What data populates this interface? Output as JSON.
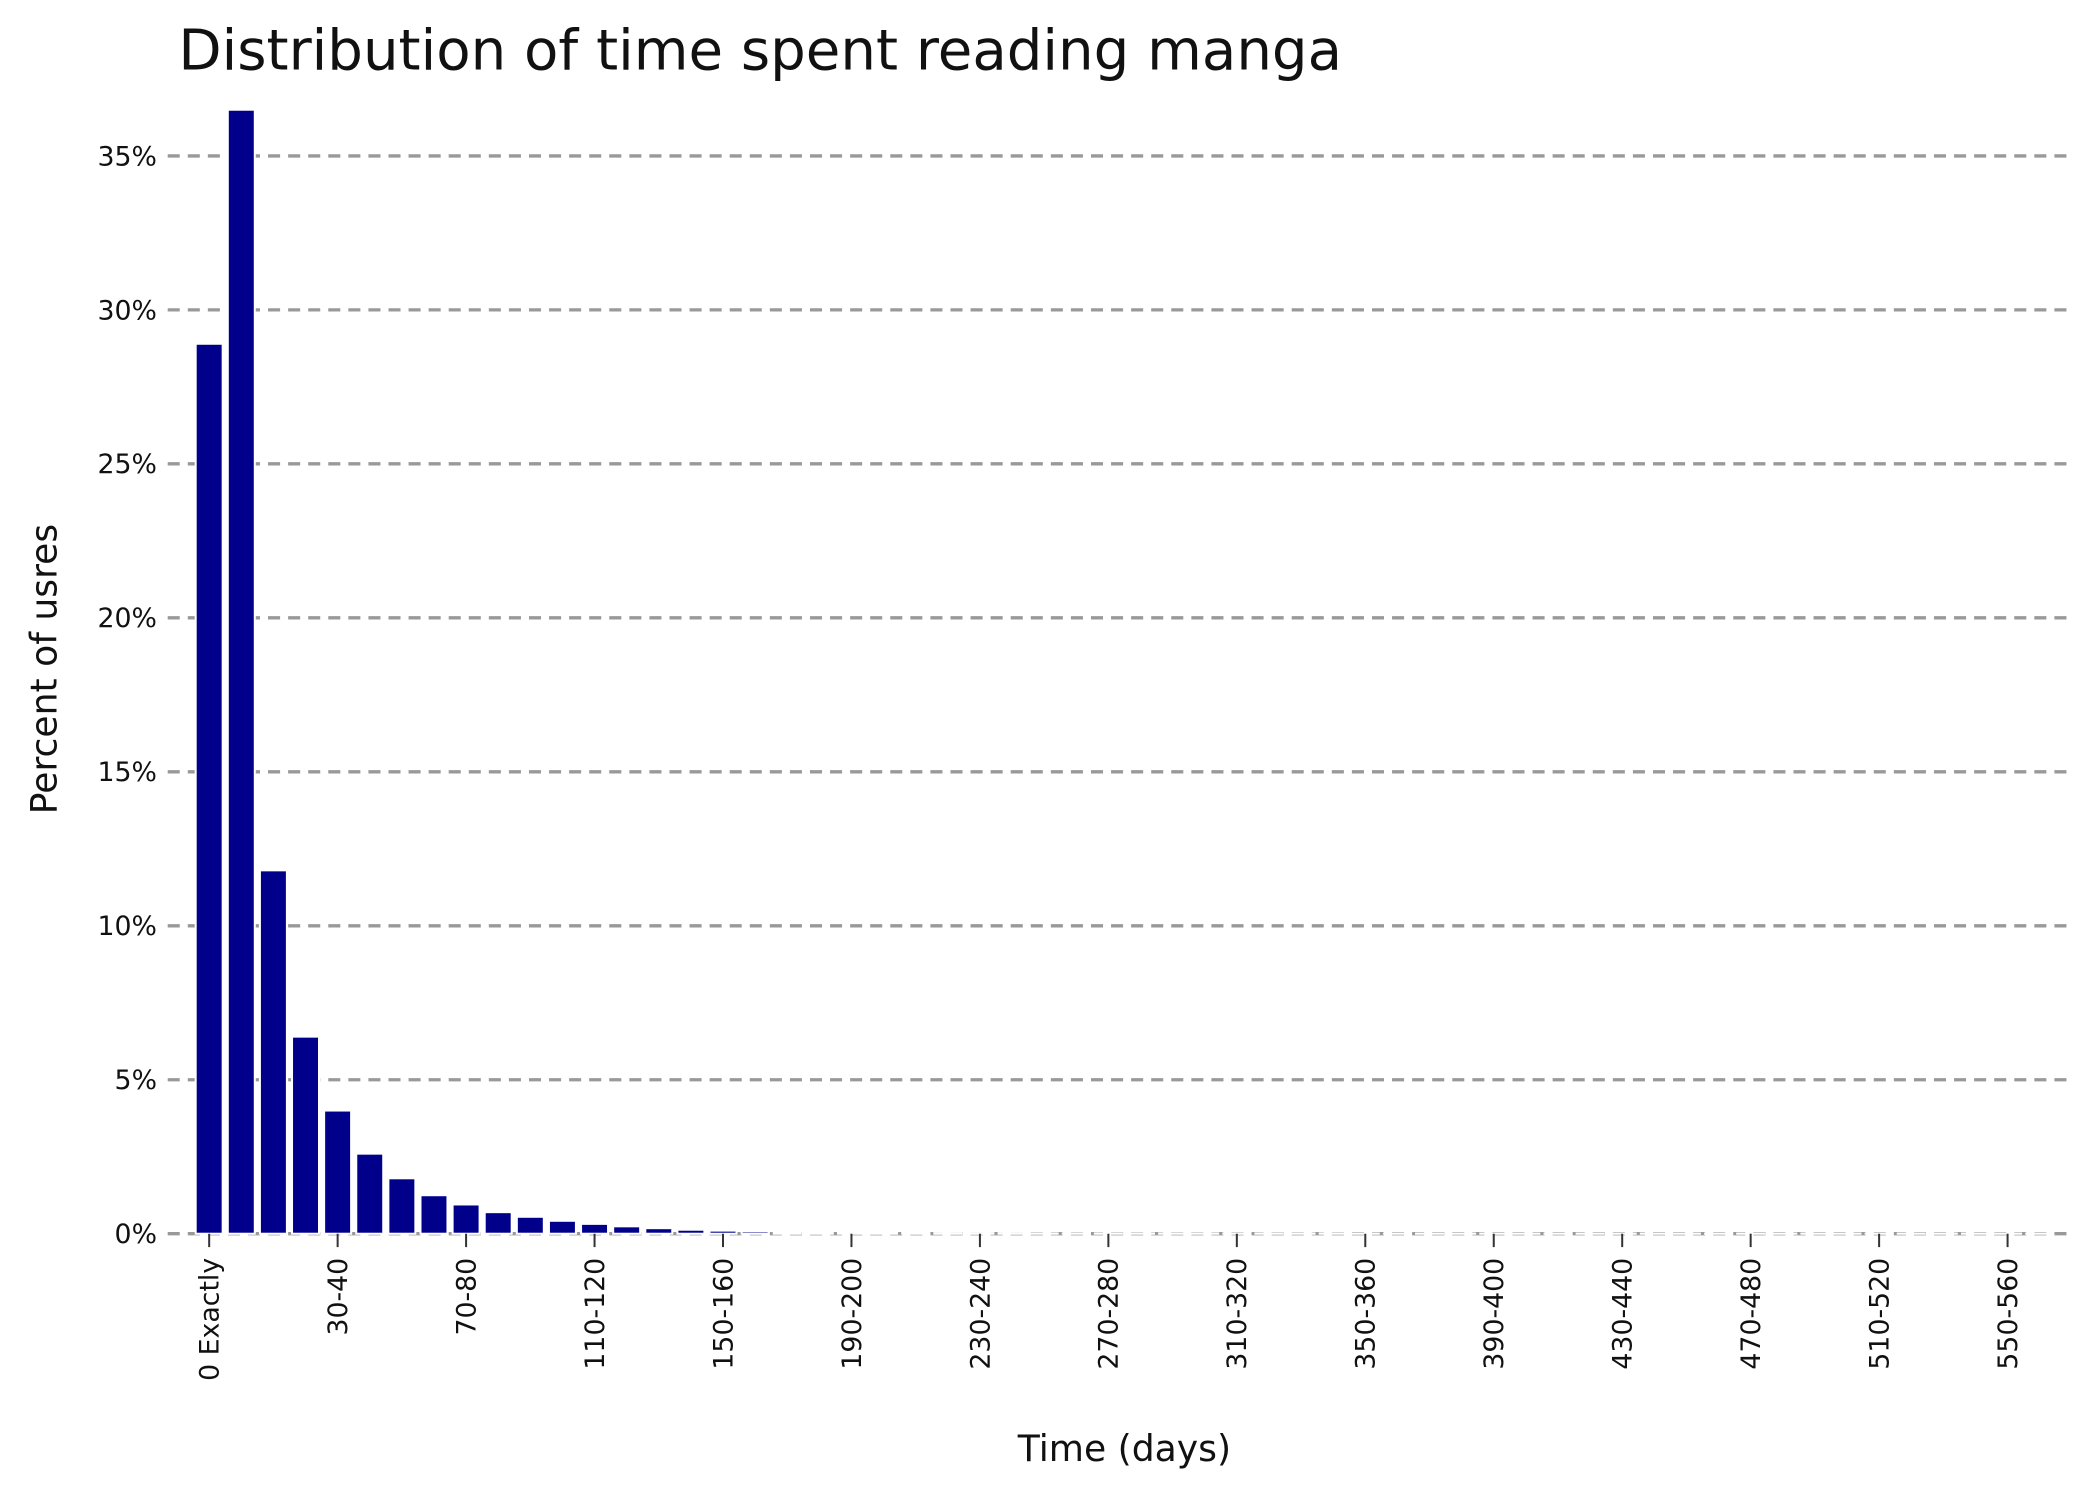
{
  "chart_data": {
    "type": "bar",
    "title": "Distribution of time spent reading manga",
    "x_label": "Time (days)",
    "y_label": "Percent of usres",
    "categories": [
      "0 Exactly",
      null,
      null,
      null,
      "30-40",
      null,
      null,
      null,
      "70-80",
      null,
      null,
      null,
      "110-120",
      null,
      null,
      null,
      "150-160",
      null,
      null,
      null,
      "190-200",
      null,
      null,
      null,
      "230-240",
      null,
      null,
      null,
      "270-280",
      null,
      null,
      null,
      "310-320",
      null,
      null,
      null,
      "350-360",
      null,
      null,
      null,
      "390-400",
      null,
      null,
      null,
      "430-440",
      null,
      null,
      null,
      "470-480",
      null,
      null,
      null,
      "510-520",
      null,
      null,
      null,
      "550-560",
      null
    ],
    "values": [
      28.9,
      36.5,
      11.8,
      6.4,
      4.0,
      2.6,
      1.8,
      1.25,
      0.95,
      0.7,
      0.55,
      0.42,
      0.32,
      0.24,
      0.18,
      0.13,
      0.1,
      0.08,
      0.06,
      0.05,
      0.04,
      0.03,
      0.03,
      0.02,
      0.02,
      0.02,
      0.01,
      0.01,
      0.01,
      0.01,
      0.01,
      0.01,
      0.01,
      0.01,
      0.01,
      0.01,
      0.005,
      0.005,
      0.005,
      0.005,
      0.005,
      0.005,
      0.005,
      0.005,
      0.005,
      0.005,
      0.005,
      0.005,
      0.005,
      0.005,
      0.005,
      0.005,
      0.005,
      0.005,
      0.005,
      0.005,
      0.005,
      0.005
    ],
    "color": "#00008b",
    "ylim": [
      0,
      36.5
    ],
    "yticks": [
      {
        "value": 0,
        "label": "0%"
      },
      {
        "value": 5,
        "label": "5%"
      },
      {
        "value": 10,
        "label": "10%"
      },
      {
        "value": 15,
        "label": "15%"
      },
      {
        "value": 20,
        "label": "20%"
      },
      {
        "value": 25,
        "label": "25%"
      },
      {
        "value": 30,
        "label": "30%"
      },
      {
        "value": 35,
        "label": "35%"
      }
    ],
    "grid": true
  }
}
